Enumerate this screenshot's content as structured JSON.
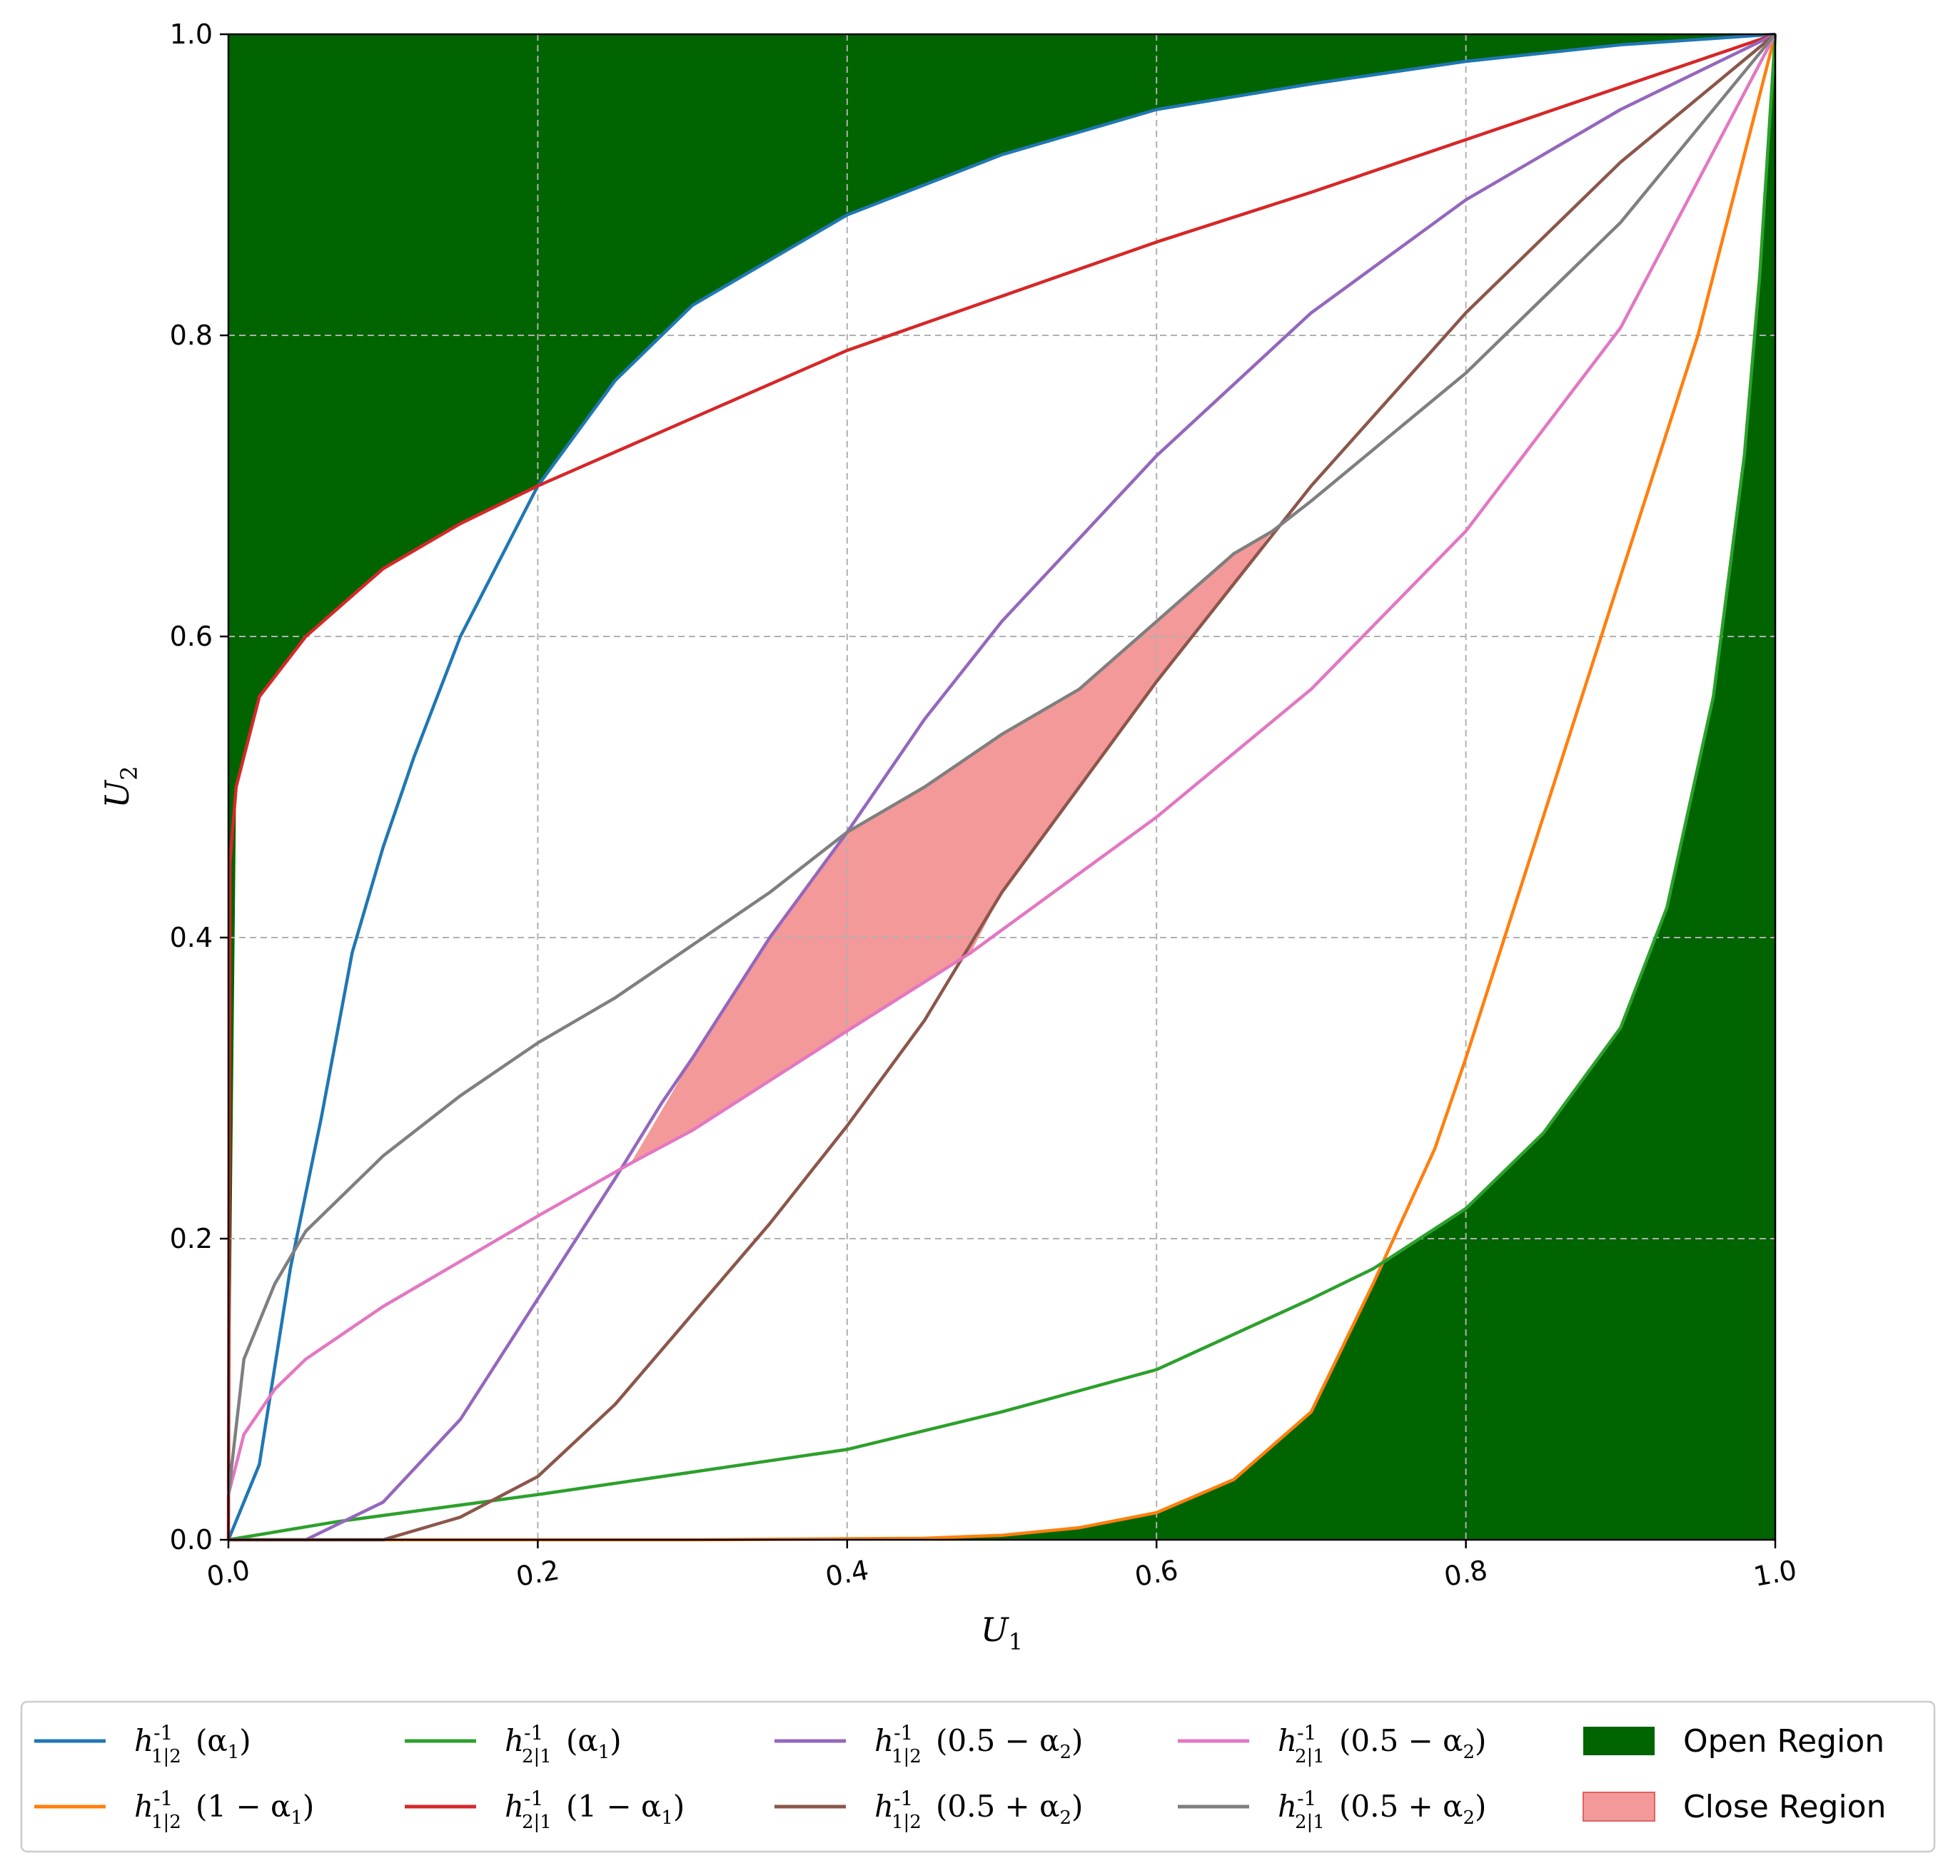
{
  "chart_data": {
    "type": "line",
    "xlabel": "U",
    "xlabel_sub": "1",
    "ylabel": "U",
    "ylabel_sub": "2",
    "xlim": [
      0,
      1
    ],
    "ylim": [
      0,
      1
    ],
    "x_ticks": [
      "0.0",
      "0.2",
      "0.4",
      "0.6",
      "0.8",
      "1.0"
    ],
    "y_ticks": [
      "0.0",
      "0.2",
      "0.4",
      "0.6",
      "0.8",
      "1.0"
    ],
    "grid": true,
    "legend_placement": "bottom, outside plot, 5 columns",
    "series": [
      {
        "name": "h_{1|2}^{-1}(α_1)",
        "color": "#1f77b4",
        "points": [
          [
            0,
            0
          ],
          [
            0.02,
            0.05
          ],
          [
            0.04,
            0.18
          ],
          [
            0.06,
            0.28
          ],
          [
            0.08,
            0.39
          ],
          [
            0.1,
            0.46
          ],
          [
            0.12,
            0.52
          ],
          [
            0.15,
            0.6
          ],
          [
            0.2,
            0.7
          ],
          [
            0.25,
            0.77
          ],
          [
            0.3,
            0.82
          ],
          [
            0.4,
            0.88
          ],
          [
            0.5,
            0.92
          ],
          [
            0.6,
            0.95
          ],
          [
            0.7,
            0.967
          ],
          [
            0.8,
            0.982
          ],
          [
            0.9,
            0.993
          ],
          [
            1,
            1
          ]
        ]
      },
      {
        "name": "h_{1|2}^{-1}(1 − α_1)",
        "color": "#ff7f0e",
        "points": [
          [
            0,
            0
          ],
          [
            0.3,
            0
          ],
          [
            0.45,
            0.001
          ],
          [
            0.5,
            0.003
          ],
          [
            0.55,
            0.008
          ],
          [
            0.6,
            0.018
          ],
          [
            0.65,
            0.04
          ],
          [
            0.7,
            0.085
          ],
          [
            0.74,
            0.17
          ],
          [
            0.78,
            0.26
          ],
          [
            0.8,
            0.32
          ],
          [
            0.85,
            0.48
          ],
          [
            0.9,
            0.64
          ],
          [
            0.95,
            0.8
          ],
          [
            1,
            1
          ]
        ]
      },
      {
        "name": "h_{2|1}^{-1}(α_1)",
        "color": "#2ca02c",
        "points": [
          [
            0,
            0
          ],
          [
            0.07,
            0.012
          ],
          [
            0.2,
            0.03
          ],
          [
            0.3,
            0.045
          ],
          [
            0.4,
            0.06
          ],
          [
            0.5,
            0.085
          ],
          [
            0.6,
            0.113
          ],
          [
            0.7,
            0.16
          ],
          [
            0.74,
            0.18
          ],
          [
            0.8,
            0.22
          ],
          [
            0.85,
            0.27
          ],
          [
            0.9,
            0.34
          ],
          [
            0.93,
            0.42
          ],
          [
            0.96,
            0.56
          ],
          [
            0.98,
            0.72
          ],
          [
            0.99,
            0.84
          ],
          [
            1,
            1
          ]
        ]
      },
      {
        "name": "h_{2|1}^{-1}(1 − α_1)",
        "color": "#d62728",
        "points": [
          [
            0,
            0
          ],
          [
            0.001,
            0.45
          ],
          [
            0.005,
            0.5
          ],
          [
            0.02,
            0.56
          ],
          [
            0.05,
            0.6
          ],
          [
            0.1,
            0.645
          ],
          [
            0.15,
            0.675
          ],
          [
            0.2,
            0.7
          ],
          [
            0.3,
            0.745
          ],
          [
            0.4,
            0.79
          ],
          [
            0.5,
            0.826
          ],
          [
            0.6,
            0.862
          ],
          [
            0.7,
            0.895
          ],
          [
            0.8,
            0.93
          ],
          [
            0.9,
            0.965
          ],
          [
            1,
            1
          ]
        ]
      },
      {
        "name": "h_{1|2}^{-1}(0.5 − α_2)",
        "color": "#9467bd",
        "points": [
          [
            0,
            0
          ],
          [
            0.05,
            0
          ],
          [
            0.1,
            0.025
          ],
          [
            0.15,
            0.08
          ],
          [
            0.2,
            0.16
          ],
          [
            0.25,
            0.24
          ],
          [
            0.28,
            0.29
          ],
          [
            0.3,
            0.32
          ],
          [
            0.35,
            0.4
          ],
          [
            0.4,
            0.47
          ],
          [
            0.45,
            0.545
          ],
          [
            0.5,
            0.61
          ],
          [
            0.6,
            0.72
          ],
          [
            0.7,
            0.815
          ],
          [
            0.8,
            0.89
          ],
          [
            0.9,
            0.95
          ],
          [
            1,
            1
          ]
        ]
      },
      {
        "name": "h_{1|2}^{-1}(0.5 + α_2)",
        "color": "#8c564b",
        "points": [
          [
            0,
            0
          ],
          [
            0.1,
            0
          ],
          [
            0.15,
            0.015
          ],
          [
            0.2,
            0.042
          ],
          [
            0.25,
            0.09
          ],
          [
            0.3,
            0.15
          ],
          [
            0.35,
            0.21
          ],
          [
            0.4,
            0.275
          ],
          [
            0.45,
            0.345
          ],
          [
            0.5,
            0.43
          ],
          [
            0.55,
            0.5
          ],
          [
            0.6,
            0.57
          ],
          [
            0.65,
            0.635
          ],
          [
            0.7,
            0.7
          ],
          [
            0.8,
            0.815
          ],
          [
            0.9,
            0.915
          ],
          [
            1,
            1
          ]
        ]
      },
      {
        "name": "h_{2|1}^{-1}(0.5 − α_2)",
        "color": "#e377c2",
        "points": [
          [
            0,
            0.03
          ],
          [
            0.01,
            0.07
          ],
          [
            0.03,
            0.1
          ],
          [
            0.05,
            0.12
          ],
          [
            0.1,
            0.155
          ],
          [
            0.15,
            0.185
          ],
          [
            0.2,
            0.215
          ],
          [
            0.26,
            0.25
          ],
          [
            0.3,
            0.272
          ],
          [
            0.35,
            0.305
          ],
          [
            0.4,
            0.338
          ],
          [
            0.48,
            0.39
          ],
          [
            0.5,
            0.405
          ],
          [
            0.6,
            0.48
          ],
          [
            0.7,
            0.565
          ],
          [
            0.8,
            0.67
          ],
          [
            0.9,
            0.805
          ],
          [
            1,
            1
          ]
        ]
      },
      {
        "name": "h_{2|1}^{-1}(0.5 + α_2)",
        "color": "#7f7f7f",
        "points": [
          [
            0,
            0.03
          ],
          [
            0.01,
            0.12
          ],
          [
            0.03,
            0.17
          ],
          [
            0.05,
            0.205
          ],
          [
            0.1,
            0.255
          ],
          [
            0.15,
            0.295
          ],
          [
            0.2,
            0.33
          ],
          [
            0.25,
            0.36
          ],
          [
            0.3,
            0.395
          ],
          [
            0.35,
            0.43
          ],
          [
            0.4,
            0.47
          ],
          [
            0.45,
            0.5
          ],
          [
            0.5,
            0.535
          ],
          [
            0.55,
            0.565
          ],
          [
            0.6,
            0.61
          ],
          [
            0.65,
            0.655
          ],
          [
            0.675,
            0.67
          ],
          [
            0.7,
            0.69
          ],
          [
            0.8,
            0.775
          ],
          [
            0.9,
            0.875
          ],
          [
            1,
            1
          ]
        ]
      }
    ],
    "regions": [
      {
        "name": "Open Region",
        "color": "#006400"
      },
      {
        "name": "Close Region",
        "color": "#f08080",
        "polygon": [
          [
            0.26,
            0.25
          ],
          [
            0.3,
            0.32
          ],
          [
            0.35,
            0.4
          ],
          [
            0.4,
            0.47
          ],
          [
            0.45,
            0.5
          ],
          [
            0.5,
            0.535
          ],
          [
            0.55,
            0.565
          ],
          [
            0.6,
            0.61
          ],
          [
            0.65,
            0.655
          ],
          [
            0.675,
            0.67
          ],
          [
            0.65,
            0.635
          ],
          [
            0.6,
            0.57
          ],
          [
            0.55,
            0.5
          ],
          [
            0.5,
            0.43
          ],
          [
            0.48,
            0.39
          ],
          [
            0.4,
            0.338
          ],
          [
            0.35,
            0.305
          ],
          [
            0.3,
            0.272
          ]
        ]
      }
    ]
  }
}
